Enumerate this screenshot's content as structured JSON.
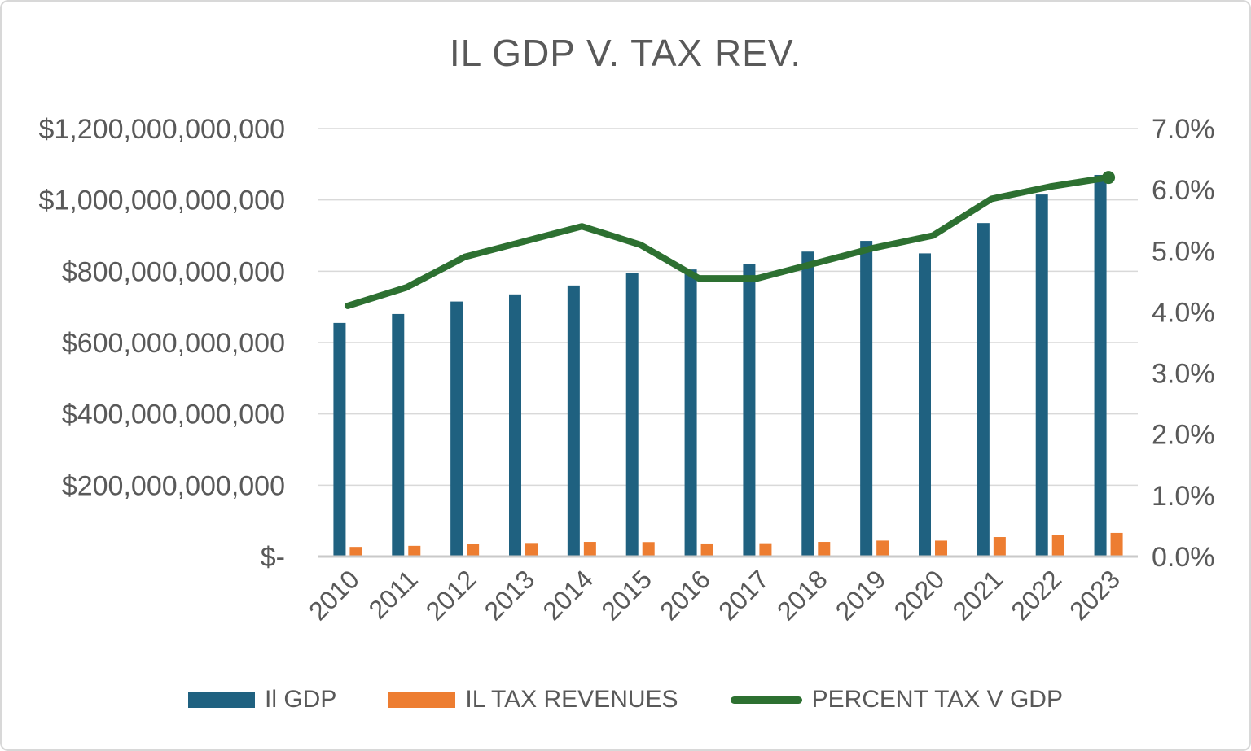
{
  "title": "IL GDP V. TAX REV.",
  "legend": [
    {
      "label": "Il GDP",
      "color": "#1F6180",
      "marker": "bar"
    },
    {
      "label": "IL TAX REVENUES",
      "color": "#ED7D31",
      "marker": "bar"
    },
    {
      "label": "PERCENT TAX V GDP",
      "color": "#2D7031",
      "marker": "line"
    }
  ],
  "colors": {
    "gdp_bar": "#1F6180",
    "tax_bar": "#ED7D31",
    "percent_line": "#2D7031",
    "gridline": "#D9D9D9",
    "axis_line": "#C9C9C9",
    "text": "#595959"
  },
  "chart_data": {
    "type": "bar",
    "title": "IL GDP V. TAX REV.",
    "categories": [
      "2010",
      "2011",
      "2012",
      "2013",
      "2014",
      "2015",
      "2016",
      "2017",
      "2018",
      "2019",
      "2020",
      "2021",
      "2022",
      "2023"
    ],
    "series": [
      {
        "name": "Il GDP",
        "type": "bar",
        "axis": "primary",
        "color": "#1F6180",
        "values": [
          655000000000,
          680000000000,
          715000000000,
          735000000000,
          760000000000,
          795000000000,
          805000000000,
          820000000000,
          855000000000,
          885000000000,
          850000000000,
          935000000000,
          1015000000000,
          1070000000000
        ]
      },
      {
        "name": "IL TAX REVENUES",
        "type": "bar",
        "axis": "primary",
        "color": "#ED7D31",
        "values": [
          27000000000,
          30000000000,
          35000000000,
          38000000000,
          41000000000,
          40500000000,
          36600000000,
          37300000000,
          41000000000,
          44700000000,
          44600000000,
          54700000000,
          61400000000,
          66300000000
        ]
      },
      {
        "name": "PERCENT TAX V GDP",
        "type": "line",
        "axis": "secondary",
        "color": "#2D7031",
        "values_percent": [
          4.1,
          4.4,
          4.9,
          5.15,
          5.4,
          5.1,
          4.55,
          4.55,
          4.8,
          5.05,
          5.25,
          5.85,
          6.05,
          6.2
        ]
      }
    ],
    "primary_axis": {
      "ticks_top_to_bottom": [
        "$1,200,000,000,000",
        "$1,000,000,000,000",
        "$800,000,000,000",
        "$600,000,000,000",
        "$400,000,000,000",
        "$200,000,000,000",
        "$-"
      ],
      "range": [
        0,
        1200000000000
      ]
    },
    "secondary_axis": {
      "ticks_top_to_bottom": [
        "7.0%",
        "6.0%",
        "5.0%",
        "4.0%",
        "3.0%",
        "2.0%",
        "1.0%",
        "0.0%"
      ],
      "range_percent": [
        0,
        7
      ]
    },
    "grid": true,
    "legend_position": "bottom"
  }
}
